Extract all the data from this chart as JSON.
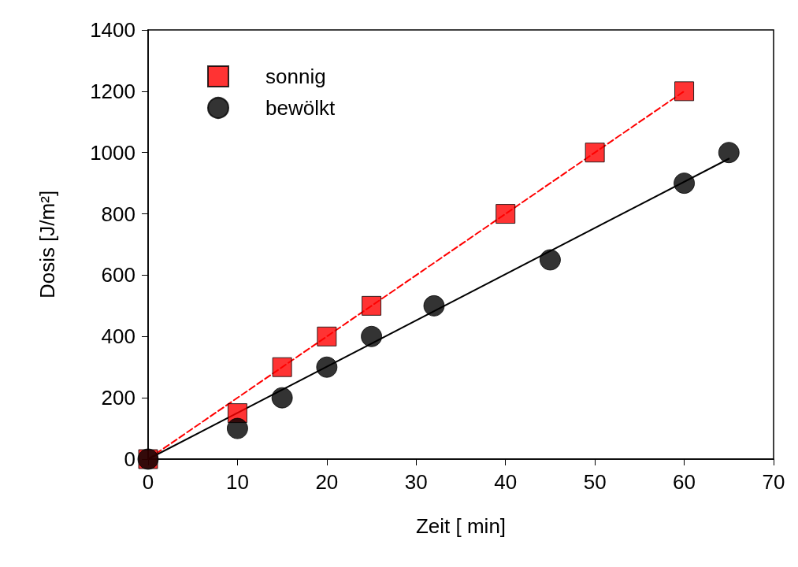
{
  "chart_data": {
    "type": "scatter",
    "xlabel": "Zeit [ min]",
    "ylabel": "Dosis [J/m²]",
    "xlim": [
      0,
      70
    ],
    "xticks": [
      0,
      10,
      20,
      30,
      40,
      50,
      60,
      70
    ],
    "ylim": [
      0,
      1400
    ],
    "yticks": [
      0,
      200,
      400,
      600,
      800,
      1000,
      1200,
      1400
    ],
    "grid": false,
    "legend": "top left",
    "series": [
      {
        "name": "sonnig",
        "color": "#ff0000",
        "marker": "square",
        "x": [
          0,
          10,
          15,
          20,
          25,
          40,
          50,
          60
        ],
        "values": [
          0,
          150,
          300,
          400,
          500,
          800,
          1000,
          1200
        ]
      },
      {
        "name": "bewölkt",
        "color": "#000000",
        "marker": "circle",
        "x": [
          0,
          10,
          15,
          20,
          25,
          32,
          45,
          60,
          65
        ],
        "values": [
          0,
          100,
          200,
          300,
          400,
          500,
          650,
          900,
          1000
        ]
      },
      {
        "type": "line",
        "color": "#ff0000",
        "line_style": "dashed",
        "marker": "none",
        "x": [
          0,
          60
        ],
        "values": [
          0,
          1200
        ]
      },
      {
        "type": "line",
        "color": "#000000",
        "line_style": "solid",
        "marker": "none",
        "x": [
          0,
          65
        ],
        "values": [
          0,
          980
        ]
      }
    ]
  }
}
